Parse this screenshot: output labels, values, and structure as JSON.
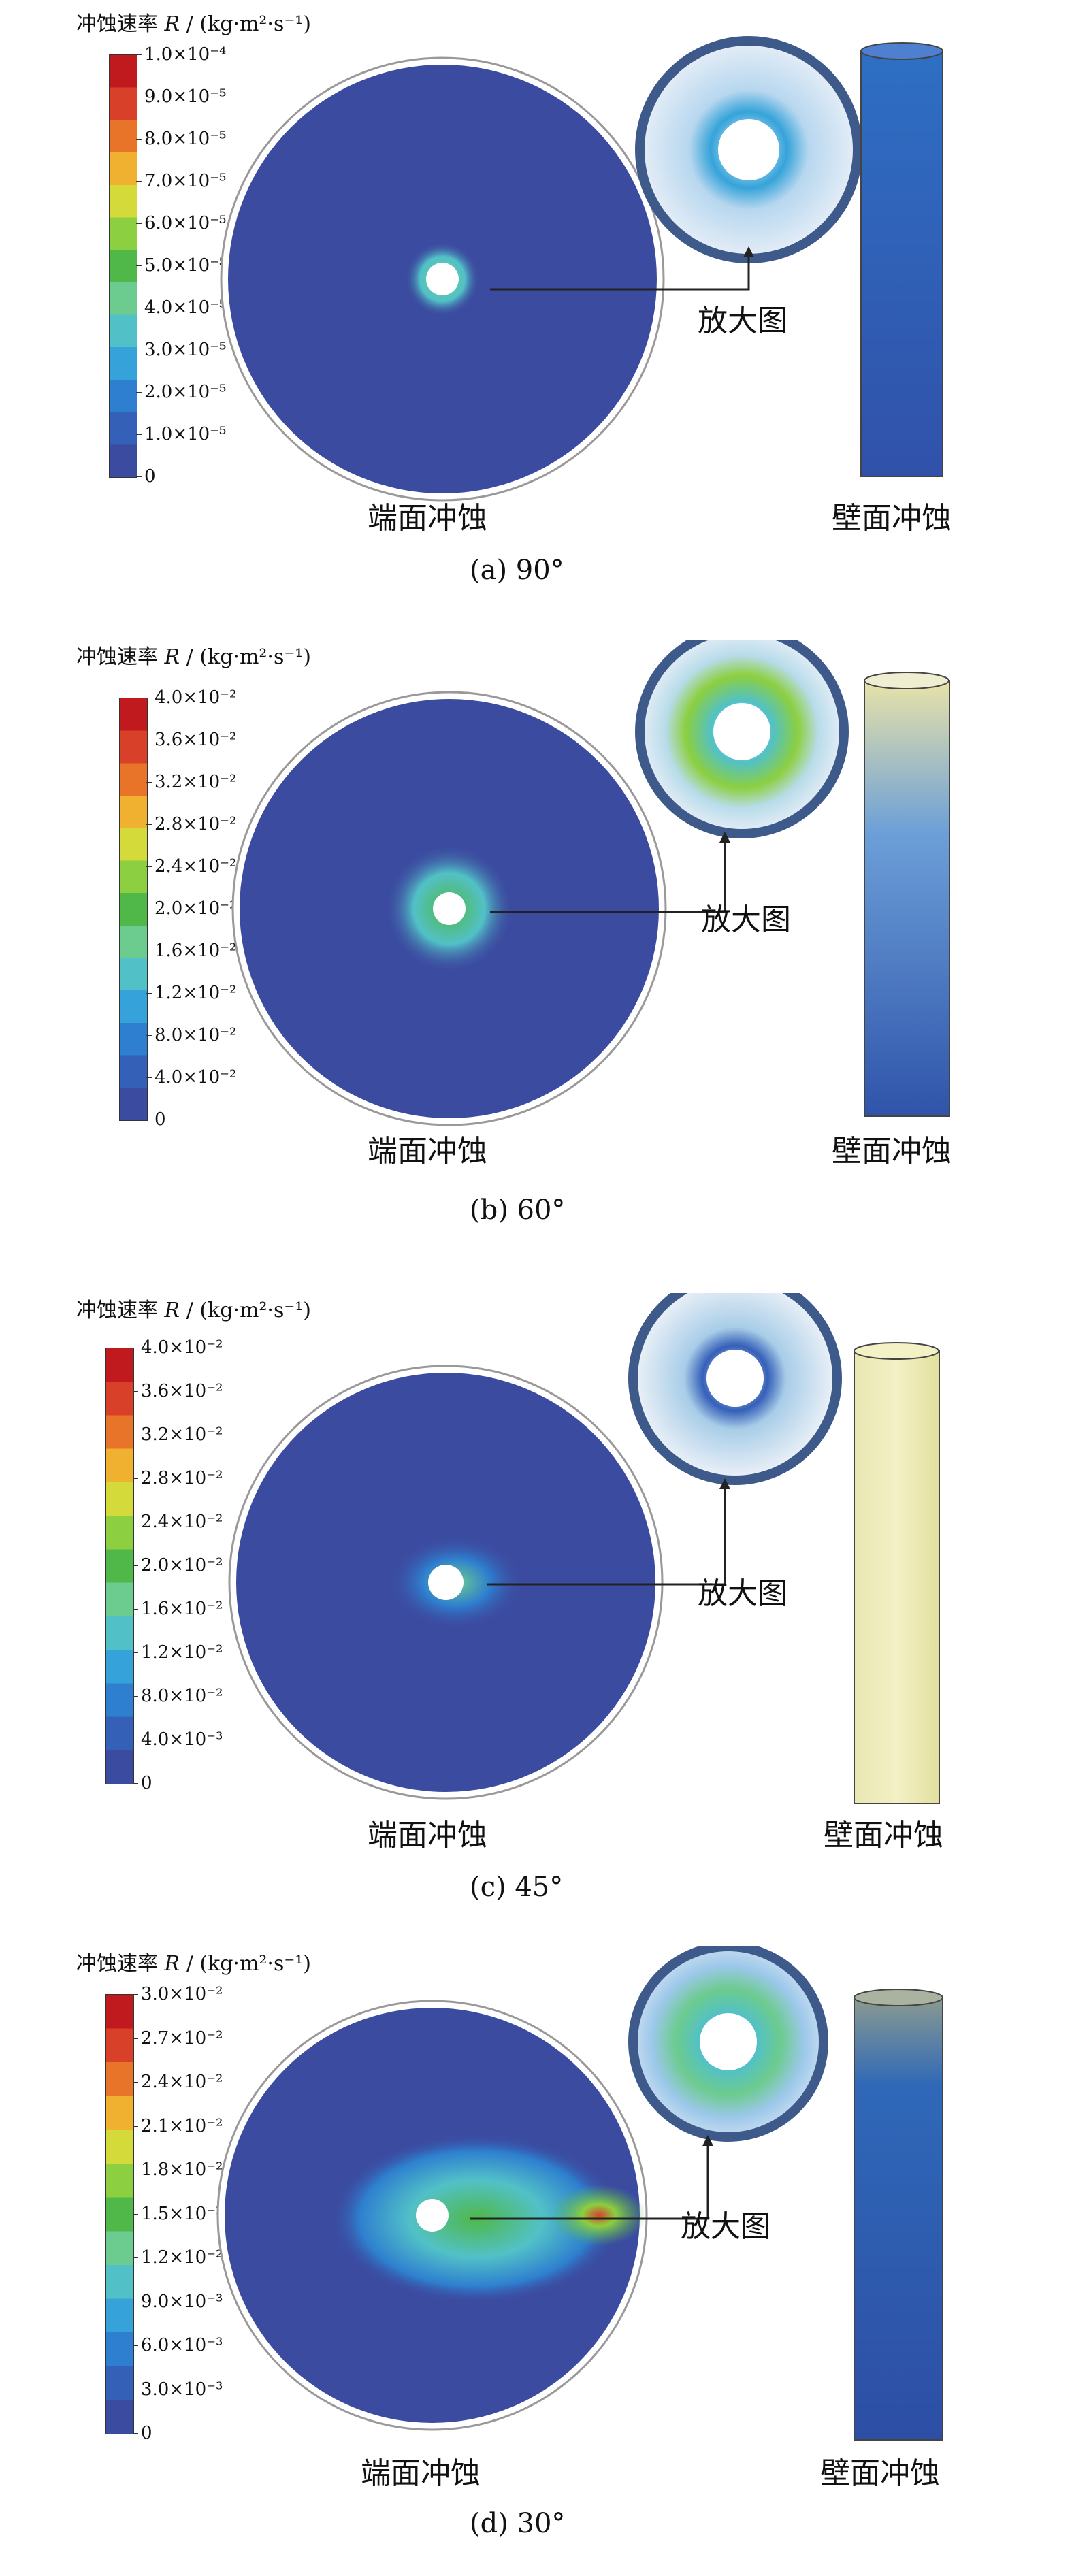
{
  "colormap": [
    "#3b4ba0",
    "#3560b8",
    "#2e7fcf",
    "#35a3d9",
    "#52c1c7",
    "#6ccb8e",
    "#4fb848",
    "#8ccf40",
    "#d4da3a",
    "#f0b030",
    "#e8742a",
    "#d8402a",
    "#c01a1f"
  ],
  "panels": [
    {
      "id": "a",
      "scale_title_prefix": "冲蚀速率",
      "scale_symbol": "R",
      "scale_unit": "/ (kg·m²·s⁻¹)",
      "ticks": [
        "1.0×10⁻⁴",
        "9.0×10⁻⁵",
        "8.0×10⁻⁵",
        "7.0×10⁻⁵",
        "6.0×10⁻⁵",
        "5.0×10⁻⁵",
        "4.0×10⁻⁵",
        "3.0×10⁻⁵",
        "2.0×10⁻⁵",
        "1.0×10⁻⁵",
        "0"
      ],
      "zoom_label": "放大图",
      "face_label": "端面冲蚀",
      "wall_label": "壁面冲蚀",
      "caption": "(a) 90°"
    },
    {
      "id": "b",
      "scale_title_prefix": "冲蚀速率",
      "scale_symbol": "R",
      "scale_unit": "/ (kg·m²·s⁻¹)",
      "ticks": [
        "4.0×10⁻²",
        "3.6×10⁻²",
        "3.2×10⁻²",
        "2.8×10⁻²",
        "2.4×10⁻²",
        "2.0×10⁻²",
        "1.6×10⁻²",
        "1.2×10⁻²",
        "8.0×10⁻²",
        "4.0×10⁻²",
        "0"
      ],
      "zoom_label": "放大图",
      "face_label": "端面冲蚀",
      "wall_label": "壁面冲蚀",
      "caption": "(b) 60°"
    },
    {
      "id": "c",
      "scale_title_prefix": "冲蚀速率",
      "scale_symbol": "R",
      "scale_unit": "/ (kg·m²·s⁻¹)",
      "ticks": [
        "4.0×10⁻²",
        "3.6×10⁻²",
        "3.2×10⁻²",
        "2.8×10⁻²",
        "2.4×10⁻²",
        "2.0×10⁻²",
        "1.6×10⁻²",
        "1.2×10⁻²",
        "8.0×10⁻²",
        "4.0×10⁻³",
        "0"
      ],
      "zoom_label": "放大图",
      "face_label": "端面冲蚀",
      "wall_label": "壁面冲蚀",
      "caption": "(c) 45°"
    },
    {
      "id": "d",
      "scale_title_prefix": "冲蚀速率",
      "scale_symbol": "R",
      "scale_unit": "/ (kg·m²·s⁻¹)",
      "ticks": [
        "3.0×10⁻²",
        "2.7×10⁻²",
        "2.4×10⁻²",
        "2.1×10⁻²",
        "1.8×10⁻²",
        "1.5×10⁻²",
        "1.2×10⁻²",
        "9.0×10⁻³",
        "6.0×10⁻³",
        "3.0×10⁻³",
        "0"
      ],
      "zoom_label": "放大图",
      "face_label": "端面冲蚀",
      "wall_label": "壁面冲蚀",
      "caption": "(d) 30°"
    }
  ]
}
